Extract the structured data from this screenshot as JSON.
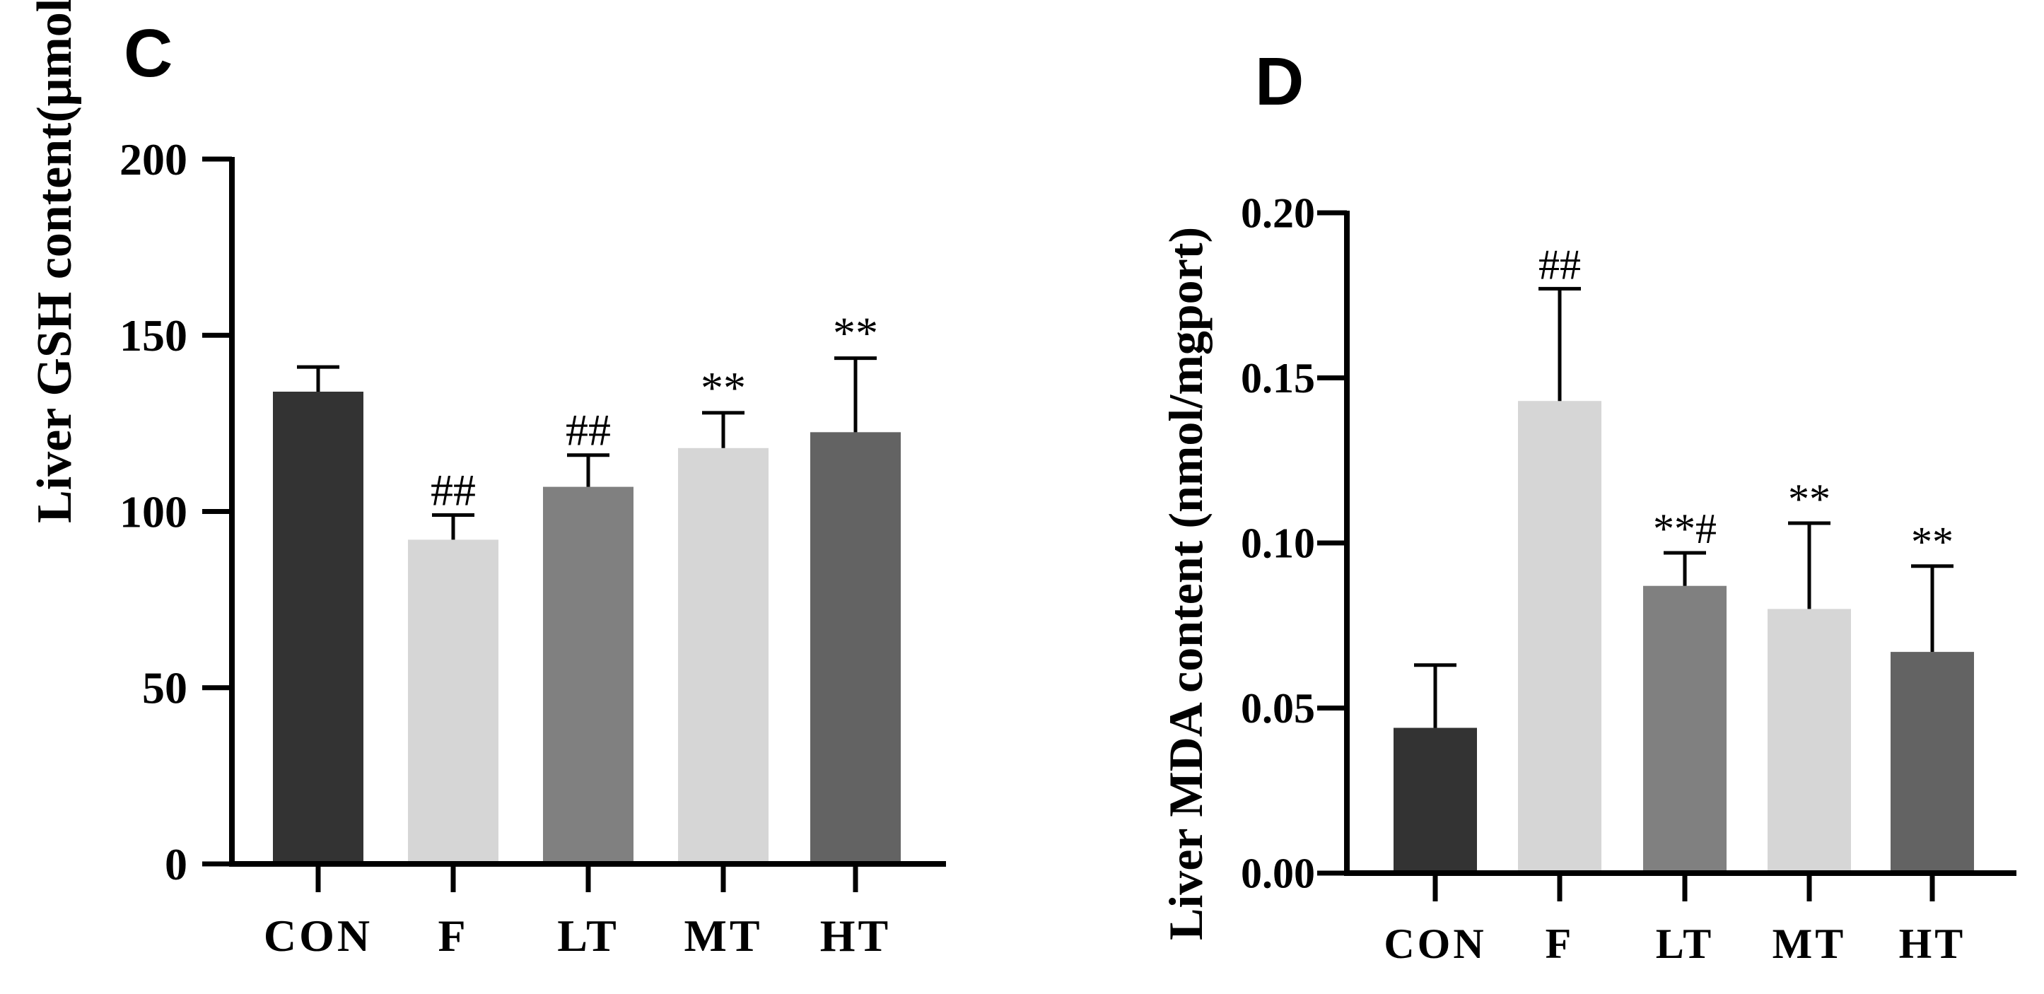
{
  "chart_data": [
    {
      "panel": "C",
      "type": "bar",
      "categories": [
        "CON",
        "F",
        "LT",
        "MT",
        "HT"
      ],
      "values": [
        134,
        92,
        107,
        118,
        122.5
      ],
      "error_upper": [
        141,
        99,
        116,
        128,
        143.5
      ],
      "annotations": [
        "",
        "##",
        "##",
        "**",
        "**"
      ],
      "bar_colors": [
        "#333333",
        "#d6d6d6",
        "#808080",
        "#d6d6d6",
        "#636363"
      ],
      "title": "",
      "xlabel": "",
      "ylabel": "Liver GSH content(μmol/gport)",
      "ylim": [
        0,
        200
      ],
      "yticks": [
        0,
        50,
        100,
        150,
        200
      ],
      "ytick_labels": [
        "0",
        "50",
        "100",
        "150",
        "200"
      ]
    },
    {
      "panel": "D",
      "type": "bar",
      "categories": [
        "CON",
        "F",
        "LT",
        "MT",
        "HT"
      ],
      "values": [
        0.044,
        0.143,
        0.087,
        0.08,
        0.067
      ],
      "error_upper": [
        0.063,
        0.177,
        0.097,
        0.106,
        0.093
      ],
      "annotations": [
        "",
        "##",
        "**#",
        "**",
        "**"
      ],
      "bar_colors": [
        "#333333",
        "#d6d6d6",
        "#808080",
        "#d6d6d6",
        "#636363"
      ],
      "title": "",
      "xlabel": "",
      "ylabel": "Liver MDA content (nmol/mgport)",
      "ylim": [
        0,
        0.2
      ],
      "yticks": [
        0,
        0.05,
        0.1,
        0.15,
        0.2
      ],
      "ytick_labels": [
        "0.00",
        "0.05",
        "0.10",
        "0.15",
        "0.20"
      ]
    }
  ]
}
